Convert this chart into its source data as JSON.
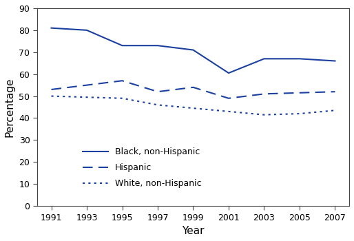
{
  "years": [
    1991,
    1993,
    1995,
    1997,
    1999,
    2001,
    2003,
    2005,
    2007
  ],
  "black_non_hispanic": [
    81,
    80,
    73,
    73,
    71,
    60.5,
    67,
    67,
    66
  ],
  "hispanic": [
    53,
    55,
    57,
    52,
    54,
    49,
    51,
    51.5,
    52
  ],
  "white_non_hispanic": [
    50,
    49.5,
    49,
    46,
    44.5,
    43,
    41.5,
    42,
    43.5
  ],
  "line_color": "#1a3fa0",
  "xlabel": "Year",
  "ylabel": "Percentage",
  "ylim": [
    0,
    90
  ],
  "yticks": [
    0,
    10,
    20,
    30,
    40,
    50,
    60,
    70,
    80,
    90
  ],
  "legend_labels": [
    "Black, non-Hispanic",
    "Hispanic",
    "White, non-Hispanic"
  ],
  "legend_linestyles": [
    "solid",
    "dashed",
    "dotted"
  ]
}
